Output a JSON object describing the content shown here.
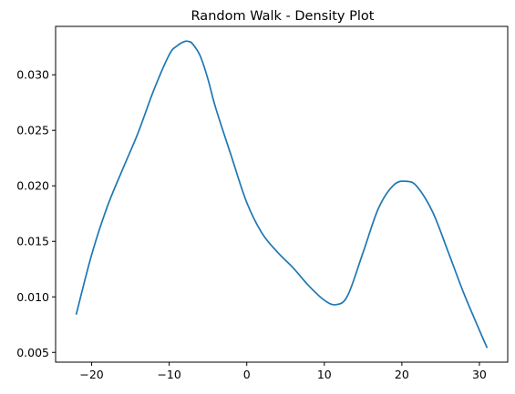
{
  "chart_data": {
    "type": "line",
    "title": "Random Walk - Density Plot",
    "xlabel": "",
    "ylabel": "",
    "xlim": [
      -24.65,
      33.65
    ],
    "ylim": [
      0.00412,
      0.03436
    ],
    "x_ticks": [
      -20,
      -10,
      0,
      10,
      20,
      30
    ],
    "x_tick_labels": [
      "−20",
      "−10",
      "0",
      "10",
      "20",
      "30"
    ],
    "y_ticks": [
      0.005,
      0.01,
      0.015,
      0.02,
      0.025,
      0.03
    ],
    "y_tick_labels": [
      "0.005",
      "0.010",
      "0.015",
      "0.020",
      "0.025",
      "0.030"
    ],
    "grid": false,
    "legend": "none",
    "series": [
      {
        "color": "#1f77b4",
        "x": [
          -22.0,
          -20.0,
          -18.0,
          -16.0,
          -14.0,
          -12.0,
          -10.0,
          -9.0,
          -8.0,
          -7.5,
          -7.0,
          -6.0,
          -5.0,
          -4.0,
          -2.0,
          0.0,
          2.0,
          4.0,
          6.0,
          8.0,
          10.0,
          11.5,
          13.0,
          15.0,
          17.0,
          19.0,
          20.7,
          22.0,
          24.0,
          26.0,
          28.0,
          30.0,
          31.0
        ],
        "y": [
          0.0084,
          0.0138,
          0.0181,
          0.0215,
          0.0248,
          0.0286,
          0.0318,
          0.0326,
          0.033,
          0.033,
          0.0328,
          0.0317,
          0.0296,
          0.027,
          0.0227,
          0.0185,
          0.0157,
          0.014,
          0.0126,
          0.011,
          0.0097,
          0.0093,
          0.0101,
          0.014,
          0.018,
          0.0201,
          0.0204,
          0.0199,
          0.0176,
          0.014,
          0.0103,
          0.007,
          0.0054
        ]
      }
    ]
  }
}
